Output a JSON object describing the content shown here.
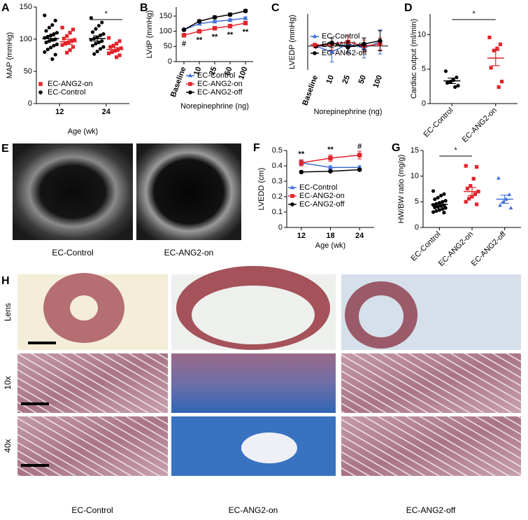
{
  "chart_data": [
    {
      "panel": "A",
      "type": "dot",
      "y_label": "MAP (mmHg)",
      "x_label": "Age (wk)",
      "categories": [
        "12",
        "24"
      ],
      "ylim": [
        0,
        150
      ],
      "yticks": [
        0,
        50,
        100,
        150
      ],
      "legend": "lower left",
      "series": [
        {
          "name": "EC-ANG2-on",
          "color": "#e3242b",
          "marker": "square",
          "points": [
            [
              118,
              115,
              110,
              105,
              101,
              99,
              97,
              95,
              93,
              91,
              88,
              83,
              79
            ],
            [
              102,
              97,
              93,
              90,
              88,
              86,
              84,
              82,
              80,
              78,
              75,
              72
            ]
          ],
          "mean": [
            96,
            84
          ],
          "sem": [
            4,
            3
          ]
        },
        {
          "name": "EC-Control",
          "color": "#000000",
          "marker": "circle",
          "points": [
            [
              137,
              129,
              122,
              118,
              113,
              110,
              108,
              106,
              104,
              102,
              100,
              99,
              97,
              95,
              92,
              90,
              87,
              84,
              80,
              76,
              69
            ],
            [
              133,
              126,
              121,
              116,
              111,
              108,
              106,
              103,
              101,
              99,
              97,
              95,
              93,
              90,
              88,
              85,
              81,
              77
            ]
          ],
          "mean": [
            101,
            101
          ],
          "sem": [
            4,
            4
          ]
        }
      ],
      "annotations": [
        null,
        "*"
      ]
    },
    {
      "panel": "B",
      "type": "line",
      "y_label": "LVdP (mmHg)",
      "x_label": "Norepinephrine (ng)",
      "categories": [
        "Baseline",
        "10",
        "25",
        "50",
        "100"
      ],
      "ylim": [
        0,
        180
      ],
      "yticks": [
        0,
        50,
        100,
        150
      ],
      "legend": "lower right",
      "series": [
        {
          "name": "EC-Control",
          "color": "#3f6fd8",
          "marker": "triangle",
          "values": [
            105,
            125,
            132,
            137,
            143
          ],
          "errors": [
            3,
            4,
            4,
            4,
            4
          ]
        },
        {
          "name": "EC-ANG2-on",
          "color": "#e3242b",
          "marker": "square",
          "values": [
            87,
            100,
            110,
            117,
            127
          ],
          "errors": [
            4,
            4,
            4,
            4,
            5
          ]
        },
        {
          "name": "EC-ANG2-off",
          "color": "#000000",
          "marker": "circle",
          "values": [
            105,
            133,
            146,
            155,
            167
          ],
          "errors": [
            3,
            5,
            5,
            5,
            5
          ]
        }
      ],
      "annotations": [
        "#",
        "**",
        "**",
        "**",
        "**"
      ]
    },
    {
      "panel": "C",
      "type": "line",
      "y_label": "LVEDP (mmHg)",
      "x_label": "Norepinephrine (ng)",
      "categories": [
        "Baseline",
        "10",
        "25",
        "50",
        "100"
      ],
      "ylim": [
        -6,
        8
      ],
      "zero_line": true,
      "legend": "upper left",
      "series": [
        {
          "name": "EC-Control",
          "color": "#3f6fd8",
          "marker": "triangle",
          "values": [
            0,
            -1.5,
            0.5,
            -0.5,
            1
          ],
          "errors": [
            0.3,
            2.5,
            2,
            2.5,
            3
          ]
        },
        {
          "name": "EC-ANG2-on",
          "color": "#e3242b",
          "marker": "square",
          "values": [
            0,
            0.5,
            1,
            0,
            0.5
          ],
          "errors": [
            0.3,
            1.5,
            1.5,
            1.5,
            1.5
          ]
        },
        {
          "name": "EC-ANG2-off",
          "color": "#000000",
          "marker": "circle",
          "values": [
            0,
            0.8,
            -0.3,
            0.5,
            1.3
          ],
          "errors": [
            0.3,
            1.2,
            1.5,
            1.5,
            2.5
          ]
        }
      ]
    },
    {
      "panel": "D",
      "type": "dot",
      "y_label": "Cardiac output (ml/min)",
      "categories": [
        "EC-Control",
        "EC-ANG2-on"
      ],
      "ylim": [
        0,
        13
      ],
      "yticks": [
        0,
        5,
        10
      ],
      "colors": [
        "#000000",
        "#e3242b"
      ],
      "markers": [
        "circle",
        "square"
      ],
      "points": [
        [
          4.7,
          3.8,
          3.4,
          3.2,
          3.0,
          2.6,
          2.4
        ],
        [
          9.6,
          8.6,
          8.0,
          7.7,
          5.2,
          3.2,
          2.4
        ]
      ],
      "mean": [
        3.3,
        6.6
      ],
      "sem": [
        0.4,
        1.1
      ],
      "annotation": "*"
    },
    {
      "panel": "F",
      "type": "line",
      "y_label": "LVEDD (cm)",
      "x_label": "Age (wk)",
      "categories": [
        "12",
        "18",
        "24"
      ],
      "ylim": [
        0,
        0.5
      ],
      "yticks": [
        0,
        0.1,
        0.2,
        0.3,
        0.4,
        0.5
      ],
      "legend": "lower right",
      "series": [
        {
          "name": "EC-Control",
          "color": "#3f6fd8",
          "marker": "triangle",
          "values": [
            0.42,
            0.39,
            0.39
          ],
          "errors": [
            0.015,
            0.01,
            0.01
          ]
        },
        {
          "name": "EC-ANG2-on",
          "color": "#e3242b",
          "marker": "square",
          "values": [
            0.42,
            0.45,
            0.47
          ],
          "errors": [
            0.02,
            0.02,
            0.025
          ]
        },
        {
          "name": "EC-ANG2-off",
          "color": "#000000",
          "marker": "circle",
          "values": [
            0.36,
            0.365,
            0.375
          ],
          "errors": [
            0.005,
            0.005,
            0.005
          ]
        }
      ],
      "annotations": [
        "**",
        "**",
        "#"
      ]
    },
    {
      "panel": "G",
      "type": "dot",
      "y_label": "HW/BW ratio (mg/g)",
      "categories": [
        "EC-Control",
        "EC-ANG2-on",
        "EC-ANG2-off"
      ],
      "ylim": [
        0,
        15
      ],
      "yticks": [
        0,
        5,
        10,
        15
      ],
      "colors": [
        "#000000",
        "#e3242b",
        "#3f6fd8"
      ],
      "markers": [
        "circle",
        "square",
        "triangle"
      ],
      "points": [
        [
          7.1,
          6.5,
          6.2,
          5.8,
          5.5,
          5.2,
          5.0,
          4.8,
          4.6,
          4.4,
          4.3,
          4.2,
          4.0,
          3.9,
          3.8,
          3.6,
          3.4,
          3.2,
          3.0,
          2.9
        ],
        [
          12.0,
          11.8,
          9.5,
          8.1,
          7.6,
          7.0,
          6.5,
          6.0,
          5.6,
          5.0,
          4.5
        ],
        [
          9.6,
          6.4,
          5.5,
          5.0,
          4.3,
          3.8
        ]
      ],
      "mean": [
        4.5,
        7.0,
        5.5
      ],
      "sem": [
        0.25,
        0.8,
        0.8
      ],
      "annotation": "*"
    }
  ],
  "panel_e": {
    "letter": "E",
    "captions": [
      "EC-Control",
      "EC-ANG2-on"
    ]
  },
  "panel_h": {
    "letter": "H",
    "rows": [
      "Lens",
      "10x",
      "40x"
    ],
    "columns": [
      "EC-Control",
      "EC-ANG2-on",
      "EC-ANG2-off"
    ]
  }
}
